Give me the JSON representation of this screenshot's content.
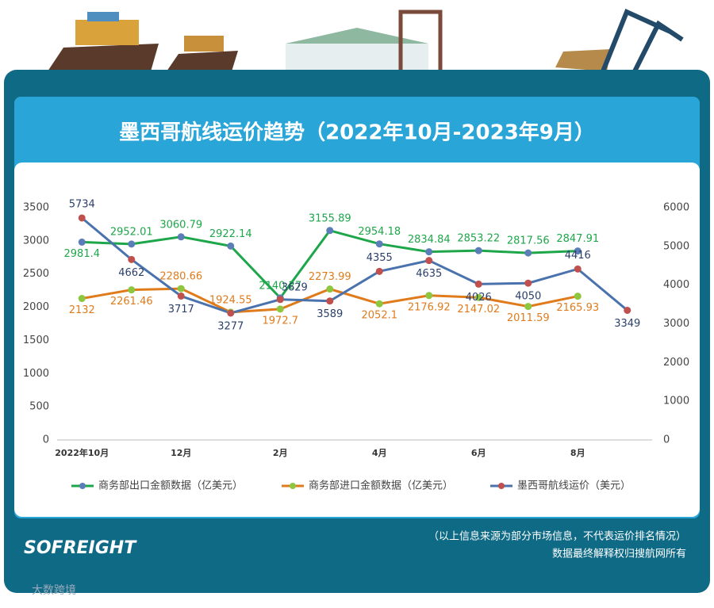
{
  "chart_data": {
    "type": "line",
    "title": "墨西哥航线运价趋势（2022年10月-2023年9月）",
    "categories": [
      "2022年10月",
      null,
      "12月",
      null,
      "2月",
      null,
      "4月",
      null,
      "6月",
      null,
      "8月",
      null
    ],
    "series": [
      {
        "name": "商务部出口金额数据（亿美元）",
        "color": "#1ea64a",
        "marker_color": "#5b7db8",
        "values": [
          2981.4,
          2952.01,
          3060.79,
          2922.14,
          2140.27,
          3155.89,
          2954.18,
          2834.84,
          2853.22,
          2817.56,
          2847.91,
          null
        ]
      },
      {
        "name": "商务部进口金额数据（亿美元）",
        "color": "#e07b1c",
        "marker_color": "#8dc63f",
        "values": [
          2132,
          2261.46,
          2280.66,
          1924.55,
          1972.7,
          2273.99,
          2052.1,
          2176.92,
          2147.02,
          2011.59,
          2165.93,
          null
        ]
      },
      {
        "name": "墨西哥航线运价（美元）",
        "color": "#4a72ad",
        "marker_color": "#c0504d",
        "axis": "y2",
        "values": [
          5734,
          4662,
          3717,
          3277,
          3629,
          3589,
          4355,
          4635,
          4026,
          4050,
          4416,
          3349
        ]
      }
    ],
    "ylim": [
      0,
      3500
    ],
    "yticks": [
      0,
      500,
      1000,
      1500,
      2000,
      2500,
      3000,
      3500
    ],
    "y2lim": [
      0,
      6000
    ],
    "y2ticks": [
      0,
      1000,
      2000,
      3000,
      4000,
      5000,
      6000
    ],
    "grid": false,
    "legend": "bottom"
  },
  "footer_note": "（以上信息来源为部分市场信息，不代表运价排名情况）",
  "footer_rights": "数据最终解释权归搜航网所有",
  "logo": "SOFREIGHT",
  "watermark": "大数跨境"
}
